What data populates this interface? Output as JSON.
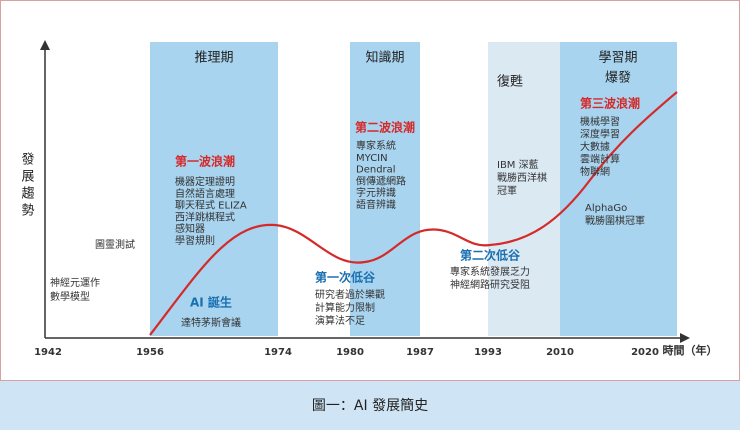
{
  "y_axis_label": "發展趨勢",
  "x_axis_label": "時間（年）",
  "years": [
    "1942",
    "1956",
    "1974",
    "1980",
    "1987",
    "1993",
    "2010",
    "2020"
  ],
  "periods": [
    "推理期",
    "知識期",
    "復甦",
    "學習期",
    "爆發"
  ],
  "events": {
    "neuron": [
      "神經元運作",
      "數學模型"
    ],
    "turing": "圖靈測試",
    "wave1": {
      "title": "第一波浪潮",
      "items": [
        "機器定理證明",
        "自然語言處理",
        "聊天程式 ELIZA",
        "西洋跳棋程式",
        "感知器",
        "學習規則"
      ]
    },
    "birth": {
      "title": "AI 誕生",
      "items": [
        "達特茅斯會議"
      ]
    },
    "wave2": {
      "title": "第二波浪潮",
      "items": [
        "專家系統",
        "MYCIN",
        "Dendral",
        "倒傳遞網路",
        "字元辨識",
        "語音辨識"
      ]
    },
    "trough1": {
      "title": "第一次低谷",
      "items": [
        "研究者過於樂觀",
        "計算能力限制",
        "演算法不足"
      ]
    },
    "deepblue": [
      "IBM 深藍",
      "戰勝西洋棋",
      "冠軍"
    ],
    "trough2": {
      "title": "第二次低谷",
      "items": [
        "專家系統發展乏力",
        "神經網路研究受阻"
      ]
    },
    "wave3": {
      "title": "第三波浪潮",
      "items": [
        "機械學習",
        "深度學習",
        "大數據",
        "雲端計算",
        "物聯網"
      ]
    },
    "alphago": [
      "AlphaGo",
      "戰勝圍棋冠軍"
    ]
  },
  "caption": "圖一：AI 發展簡史"
}
